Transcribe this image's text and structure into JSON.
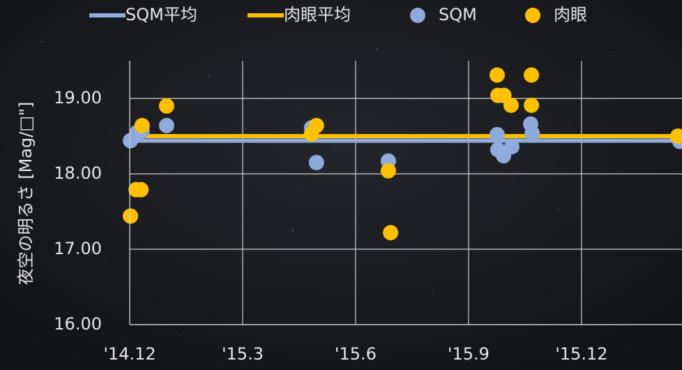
{
  "chart_data": {
    "type": "scatter",
    "y_label": "夜空の明るさ [Mag/□\"]",
    "xlim": [
      0,
      14.67
    ],
    "xticks": [
      {
        "value": 0,
        "label": "'14.12"
      },
      {
        "value": 3,
        "label": "'15.3"
      },
      {
        "value": 6,
        "label": "'15.6"
      },
      {
        "value": 9,
        "label": "'15.9"
      },
      {
        "value": 12,
        "label": "'15.12"
      }
    ],
    "ylim": [
      16,
      19.5
    ],
    "yticks": [
      {
        "value": 16,
        "label": "16.00"
      },
      {
        "value": 17,
        "label": "17.00"
      },
      {
        "value": 18,
        "label": "18.00"
      },
      {
        "value": 19,
        "label": "19.00"
      }
    ],
    "grid": true,
    "legend": "top",
    "series": [
      {
        "name": "SQM平均",
        "type": "line",
        "color": "#8faadc",
        "x": [
          0,
          14.67
        ],
        "values": [
          18.44,
          18.44
        ]
      },
      {
        "name": "肉眼平均",
        "type": "line",
        "color": "#ffc000",
        "x": [
          0,
          14.67
        ],
        "values": [
          18.5,
          18.5
        ]
      },
      {
        "name": "SQM",
        "type": "scatter",
        "color": "#8faadc",
        "x": [
          0.02,
          0.2,
          0.33,
          0.98,
          4.83,
          4.96,
          6.87,
          9.76,
          9.78,
          9.93,
          10.15,
          10.65,
          10.69,
          14.61
        ],
        "values": [
          18.44,
          18.55,
          18.57,
          18.64,
          18.61,
          18.15,
          18.17,
          18.52,
          18.32,
          18.24,
          18.36,
          18.66,
          18.54,
          18.43
        ]
      },
      {
        "name": "肉眼",
        "type": "scatter",
        "color": "#ffc000",
        "x": [
          0.02,
          0.17,
          0.3,
          0.33,
          0.98,
          4.83,
          4.96,
          6.87,
          6.93,
          9.76,
          9.78,
          9.94,
          10.13,
          10.67,
          10.67,
          14.56
        ],
        "values": [
          17.44,
          17.79,
          17.79,
          18.64,
          18.9,
          18.53,
          18.64,
          18.04,
          17.22,
          19.31,
          19.04,
          19.04,
          18.91,
          19.31,
          18.91,
          18.5
        ]
      }
    ]
  }
}
